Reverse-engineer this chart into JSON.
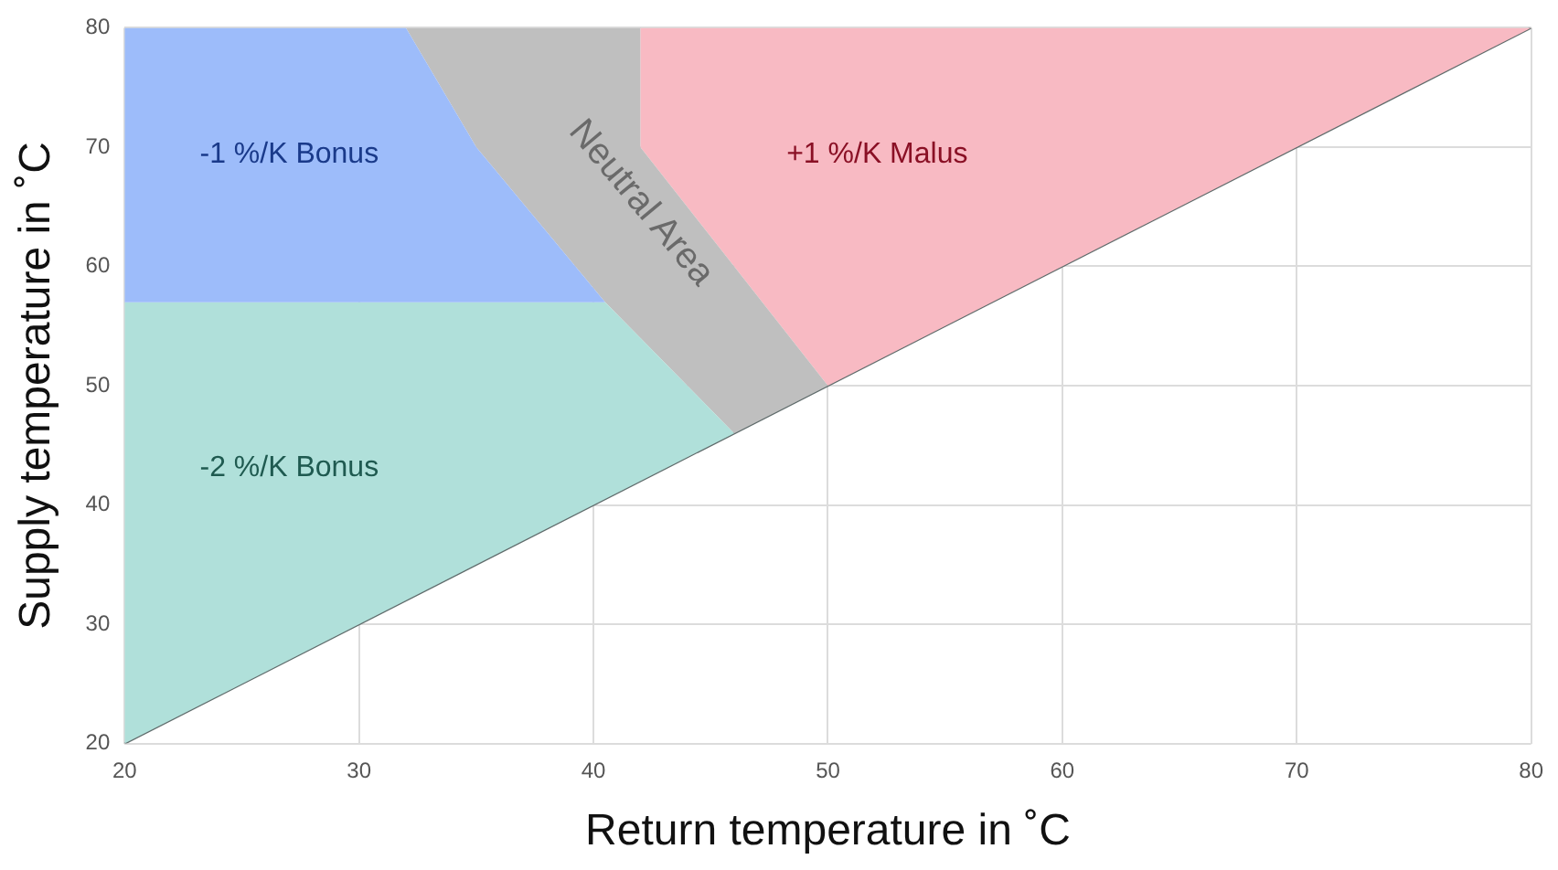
{
  "chart_data": {
    "type": "area",
    "xlabel": "Return temperature in ˚C",
    "ylabel": "Supply temperature in ˚C",
    "xlim": [
      20,
      80
    ],
    "ylim": [
      20,
      80
    ],
    "xticks": [
      20,
      30,
      40,
      50,
      60,
      70,
      80
    ],
    "yticks": [
      20,
      30,
      40,
      50,
      60,
      70,
      80
    ],
    "grid": true,
    "legend": false,
    "series": [
      {
        "color": "#9dbcfa",
        "x": [
          20,
          32,
          35,
          40.5,
          20
        ],
        "values": [
          80,
          80,
          70,
          57,
          57
        ]
      },
      {
        "color": "#b0e0da",
        "x": [
          20,
          40.5,
          46,
          20
        ],
        "values": [
          57,
          57,
          46,
          20
        ]
      },
      {
        "color": "#bfbfbf",
        "x": [
          32,
          42,
          42,
          50,
          46,
          40.5,
          35
        ],
        "values": [
          80,
          80,
          70,
          50,
          46,
          57,
          70
        ]
      },
      {
        "color": "#f8bac3",
        "x": [
          42,
          80,
          50,
          42
        ],
        "values": [
          80,
          80,
          50,
          70
        ]
      },
      {
        "type": "line",
        "color": "#5f6b6b",
        "x": [
          20,
          80
        ],
        "values": [
          20,
          80
        ]
      }
    ],
    "annotations": [
      "-1 %/K Bonus",
      "-2 %/K Bonus",
      "Neutral Area",
      "+1 %/K Malus"
    ]
  }
}
